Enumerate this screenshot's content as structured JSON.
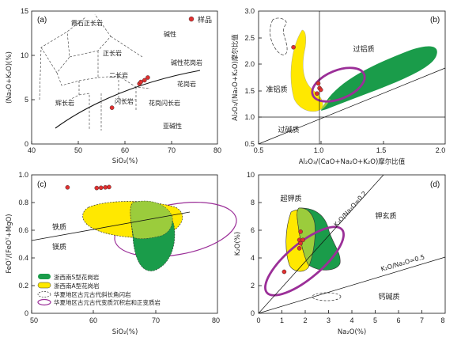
{
  "colors": {
    "green": "#1a9c4a",
    "yellow": "#ffe800",
    "overlap": "#9bcc3c",
    "purple": "#9b2f98",
    "sample": "#e03030"
  },
  "chart_data": [
    {
      "type": "scatter",
      "panel_label": "(a)",
      "xlabel": "SiO₂(%)",
      "ylabel": "(Na₂O+K₂O)(%)",
      "xlim": [
        40,
        80
      ],
      "ylim": [
        0,
        15
      ],
      "xticks": [
        "40",
        "50",
        "60",
        "70",
        "80"
      ],
      "yticks": [
        "0",
        "5",
        "10",
        "15"
      ],
      "legend": "样品",
      "fields": [
        "霞石正长岩",
        "正长岩",
        "碱性",
        "碱性花岗岩",
        "二长岩",
        "花岗岩",
        "辉长岩",
        "闪长岩",
        "花岗闪长岩",
        "亚碱性"
      ],
      "points": [
        [
          63.2,
          6.8
        ],
        [
          63.5,
          7.0
        ],
        [
          64.3,
          7.2
        ],
        [
          65.0,
          7.5
        ],
        [
          57.3,
          4.1
        ]
      ]
    },
    {
      "type": "scatter",
      "panel_label": "(b)",
      "xlabel": "Al₂O₃/(CaO+Na₂O+K₂O)摩尔比值",
      "ylabel": "Al₂O₃/(Na₂O+K₂O)摩尔比值",
      "xlim": [
        0.5,
        2.0
      ],
      "ylim": [
        0.5,
        3.0
      ],
      "xticks": [
        "0.5",
        "1.0",
        "1.5",
        "2.0"
      ],
      "yticks": [
        "0.5",
        "1.0",
        "1.5",
        "2.0",
        "2.5",
        "3.0"
      ],
      "fields": [
        "准铝质",
        "过铝质",
        "过碱质"
      ],
      "points": [
        [
          0.78,
          2.32
        ],
        [
          0.98,
          1.64
        ],
        [
          0.99,
          1.55
        ],
        [
          1.0,
          1.52
        ],
        [
          0.97,
          1.45
        ]
      ]
    },
    {
      "type": "scatter",
      "panel_label": "(c)",
      "xlabel": "SiO₂(%)",
      "ylabel": "FeOᵀ/(FeOᵀ+MgO)",
      "xlim": [
        50,
        80
      ],
      "ylim": [
        0,
        1.0
      ],
      "xticks": [
        "50",
        "60",
        "70",
        "80"
      ],
      "yticks": [
        "0",
        "0.2",
        "0.4",
        "0.6",
        "0.8",
        "1.0"
      ],
      "fields": [
        "铁质",
        "镁质"
      ],
      "legend": [
        {
          "name": "浙西南S型花岗岩",
          "kind": "green"
        },
        {
          "name": "浙西南A型花岗岩",
          "kind": "yellow"
        },
        {
          "name": "华夏地区古元古代斜长角闪岩",
          "kind": "dashed"
        },
        {
          "name": "华夏地区古元古代变质沉积岩和正变质岩",
          "kind": "purple"
        }
      ],
      "points": [
        [
          55.8,
          0.91
        ],
        [
          60.5,
          0.905
        ],
        [
          61.2,
          0.907
        ],
        [
          61.9,
          0.91
        ],
        [
          62.5,
          0.912
        ]
      ]
    },
    {
      "type": "scatter",
      "panel_label": "(d)",
      "xlabel": "Na₂O(%)",
      "ylabel": "K₂O(%)",
      "xlim": [
        0,
        8
      ],
      "ylim": [
        0,
        10
      ],
      "xticks": [
        "0",
        "1",
        "2",
        "3",
        "4",
        "5",
        "6",
        "7",
        "8"
      ],
      "yticks": [
        "0",
        "2",
        "4",
        "6",
        "8",
        "10"
      ],
      "fields": [
        "超钾质",
        "钾玄质",
        "钙碱质"
      ],
      "lines": [
        "K₂O/Na₂O=0.2",
        "K₂O/Na₂O=0.5"
      ],
      "points": [
        [
          1.8,
          5.9
        ],
        [
          1.75,
          5.3
        ],
        [
          1.9,
          5.3
        ],
        [
          1.8,
          5.05
        ],
        [
          1.75,
          4.7
        ],
        [
          1.1,
          3.0
        ]
      ]
    }
  ]
}
